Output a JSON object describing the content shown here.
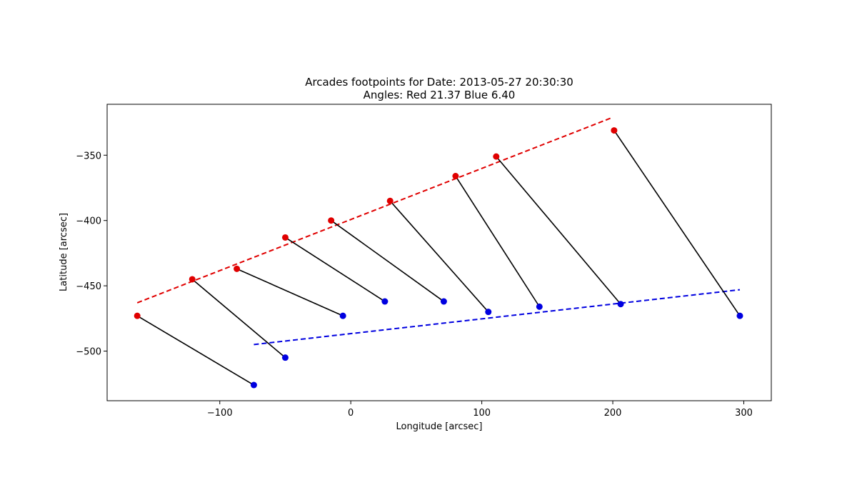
{
  "chart_data": {
    "type": "scatter",
    "title": "Arcades footpoints for Date: 2013-05-27 20:30:30",
    "subtitle": "Angles: Red 21.37 Blue 6.40",
    "xlabel": "Longitude [arcsec]",
    "ylabel": "Latitude [arcsec]",
    "xlim": [
      -186,
      321
    ],
    "ylim": [
      -538,
      -311
    ],
    "xticks": [
      -100,
      0,
      100,
      200,
      300
    ],
    "yticks": [
      -350,
      -400,
      -450,
      -500
    ],
    "xtick_labels": [
      "−100",
      "0",
      "100",
      "200",
      "300"
    ],
    "ytick_labels": [
      "−350",
      "−400",
      "−450",
      "−500"
    ],
    "grid": false,
    "legend": "none",
    "colors": {
      "red": "#e00000",
      "blue": "#0000e0",
      "link": "#000000"
    },
    "red_points": [
      [
        -163,
        -473
      ],
      [
        -121,
        -445
      ],
      [
        -87,
        -437
      ],
      [
        -50,
        -413
      ],
      [
        -15,
        -400
      ],
      [
        30,
        -385
      ],
      [
        80,
        -366
      ],
      [
        111,
        -351
      ],
      [
        201,
        -331
      ]
    ],
    "blue_points": [
      [
        -74,
        -526
      ],
      [
        -50,
        -505
      ],
      [
        -6,
        -473
      ],
      [
        26,
        -462
      ],
      [
        71,
        -462
      ],
      [
        105,
        -470
      ],
      [
        144,
        -466
      ],
      [
        206,
        -464
      ],
      [
        297,
        -473
      ]
    ],
    "red_fit_line": [
      [
        -163,
        -463
      ],
      [
        200,
        -321
      ]
    ],
    "blue_fit_line": [
      [
        -74,
        -495
      ],
      [
        297,
        -453
      ]
    ]
  }
}
